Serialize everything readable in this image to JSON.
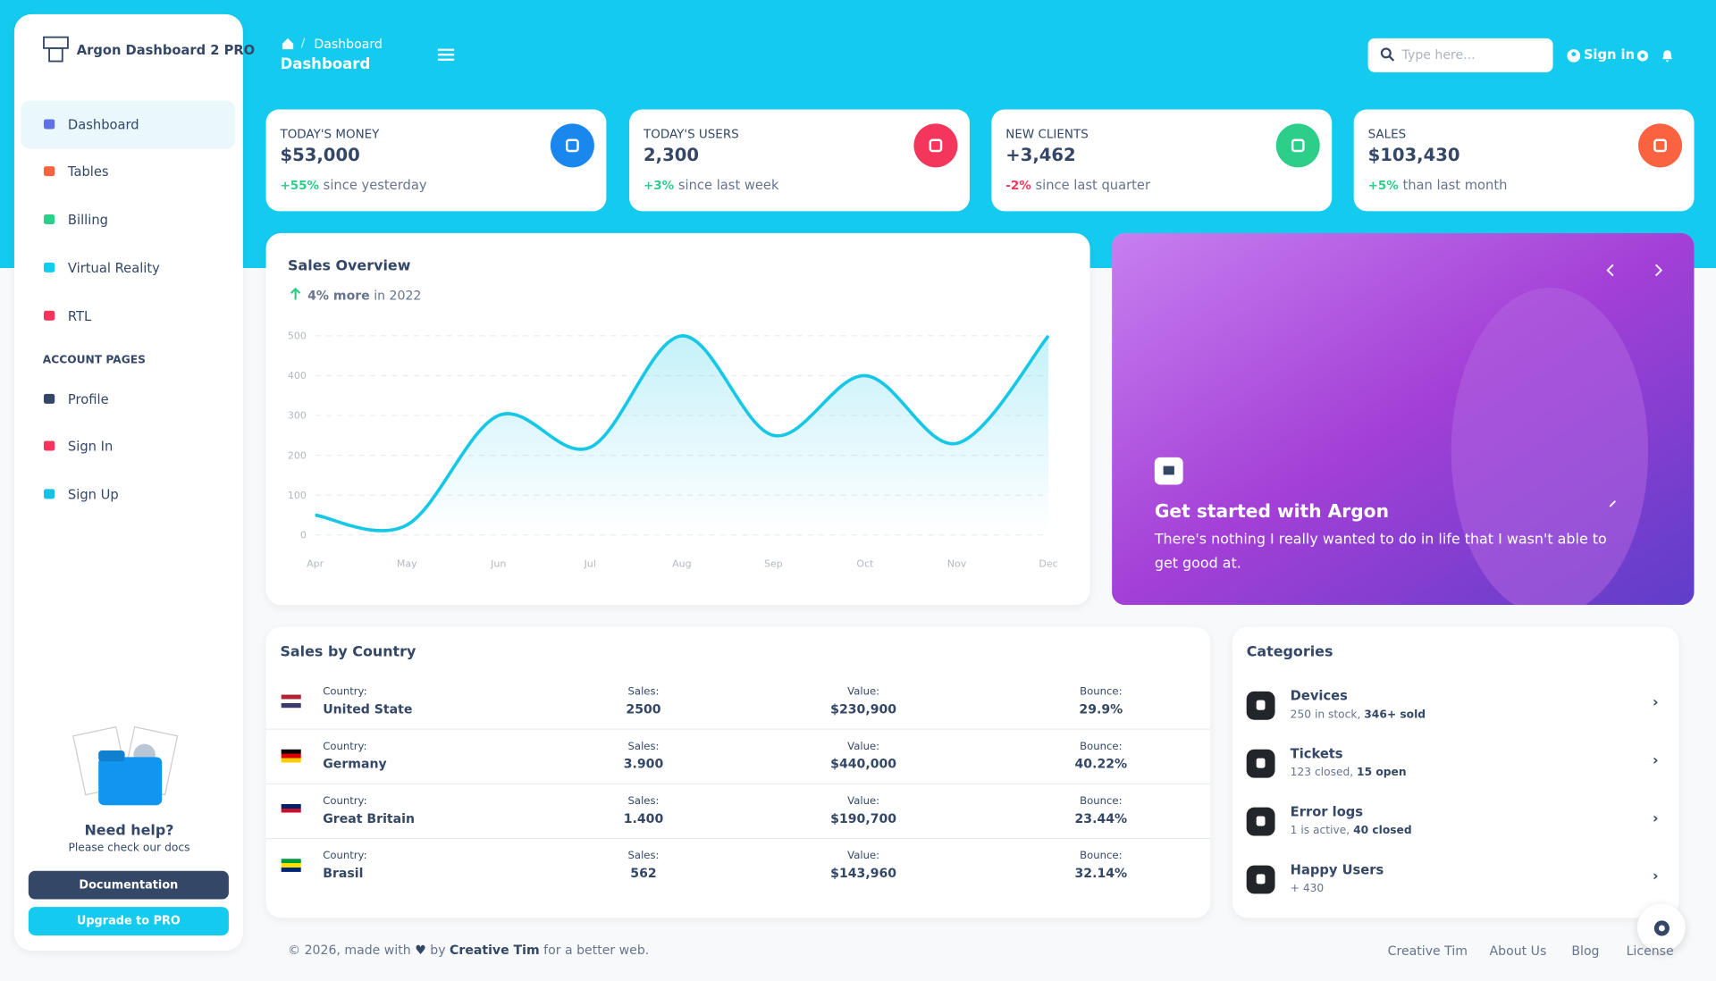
{
  "sidebar": {
    "brand": "Argon Dashboard 2 PRO",
    "nav": [
      "Dashboard",
      "Tables",
      "Billing",
      "Virtual Reality",
      "RTL"
    ],
    "section": "ACCOUNT PAGES",
    "account_nav": [
      "Profile",
      "Sign In",
      "Sign Up"
    ],
    "help_title": "Need help?",
    "help_text": "Please check our docs",
    "buttons": [
      "Documentation",
      "Upgrade to PRO"
    ]
  },
  "navbar": {
    "breadcrumb": "Dashboard",
    "page_title": "Dashboard",
    "search_placeholder": "Type here...",
    "sign_in": "Sign in"
  },
  "stats": [
    {
      "title": "TODAY'S MONEY",
      "value": "$53,000",
      "change": "+55%",
      "note": "since yesterday"
    },
    {
      "title": "TODAY'S USERS",
      "value": "2,300",
      "change": "+3%",
      "note": "since last week"
    },
    {
      "title": "NEW CLIENTS",
      "value": "+3,462",
      "change": "-2%",
      "note": "since last quarter"
    },
    {
      "title": "SALES",
      "value": "$103,430",
      "change": "+5%",
      "note": "than last month"
    }
  ],
  "chart_data": {
    "type": "line",
    "title": "Sales Overview",
    "subtitle_bold": "4% more",
    "subtitle": "in 2022",
    "categories": [
      "Apr",
      "May",
      "Jun",
      "Jul",
      "Aug",
      "Sep",
      "Oct",
      "Nov",
      "Dec"
    ],
    "values": [
      50,
      25,
      300,
      220,
      500,
      250,
      400,
      230,
      500
    ],
    "color": "#17c8e6",
    "ylim": [
      0,
      500
    ],
    "yticks": [
      0,
      100,
      200,
      300,
      400,
      500
    ],
    "grid": true
  },
  "carousel": {
    "title": "Get started with Argon",
    "text": "There's nothing I really wanted to do in life that I wasn't able to get good at."
  },
  "table": {
    "title": "Sales by Country",
    "headers": [
      "Country:",
      "Sales:",
      "Value:",
      "Bounce:"
    ],
    "rows": [
      [
        "United State",
        "2500",
        "$230,900",
        "29.9%"
      ],
      [
        "Germany",
        "3.900",
        "$440,000",
        "40.22%"
      ],
      [
        "Great Britain",
        "1.400",
        "$190,700",
        "23.44%"
      ],
      [
        "Brasil",
        "562",
        "$143,960",
        "32.14%"
      ]
    ]
  },
  "categories": {
    "title": "Categories",
    "items": [
      {
        "name": "Devices",
        "detail": "250 in stock,",
        "highlight": "346+ sold"
      },
      {
        "name": "Tickets",
        "detail": "123 closed,",
        "highlight": "15 open"
      },
      {
        "name": "Error logs",
        "detail": "1 is active,",
        "highlight": "40 closed"
      },
      {
        "name": "Happy Users",
        "detail": "+ 430",
        "highlight": null
      }
    ]
  },
  "footer": {
    "copyright": "© 2026, made with",
    "by": "by",
    "author": "Creative Tim",
    "suffix": "for a better web.",
    "links": [
      "Creative Tim",
      "About Us",
      "Blog",
      "License"
    ]
  }
}
